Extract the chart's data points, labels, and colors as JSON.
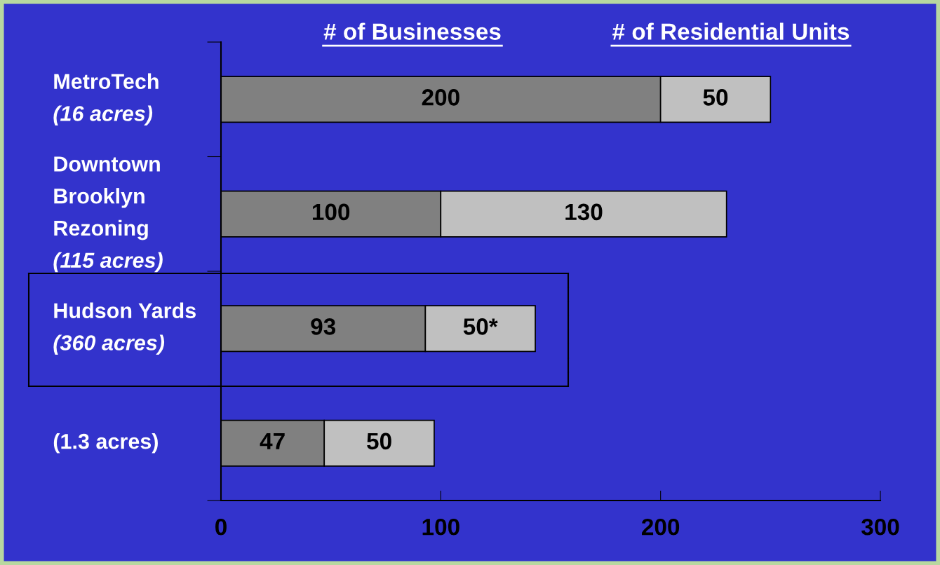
{
  "chart_data": {
    "type": "bar",
    "orientation": "horizontal",
    "stacked": true,
    "categories": [
      "MetroTech\n(16 acres)",
      "Downtown\nBrooklyn\nRezoning\n(115 acres)",
      "Hudson Yards\n(360 acres)",
      "(1.3 acres)"
    ],
    "series": [
      {
        "name": "# of Businesses",
        "color": "#808080",
        "values": [
          200,
          100,
          93,
          47
        ],
        "value_labels": [
          "200",
          "100",
          "93",
          "47"
        ]
      },
      {
        "name": "# of Residential Units",
        "color": "#c0c0c0",
        "values": [
          50,
          130,
          50,
          50
        ],
        "value_labels": [
          "50",
          "130",
          "50*",
          "50"
        ]
      }
    ],
    "xlim": [
      0,
      300
    ],
    "xticks": [
      0,
      100,
      200,
      300
    ],
    "grid": false,
    "legend": false
  }
}
